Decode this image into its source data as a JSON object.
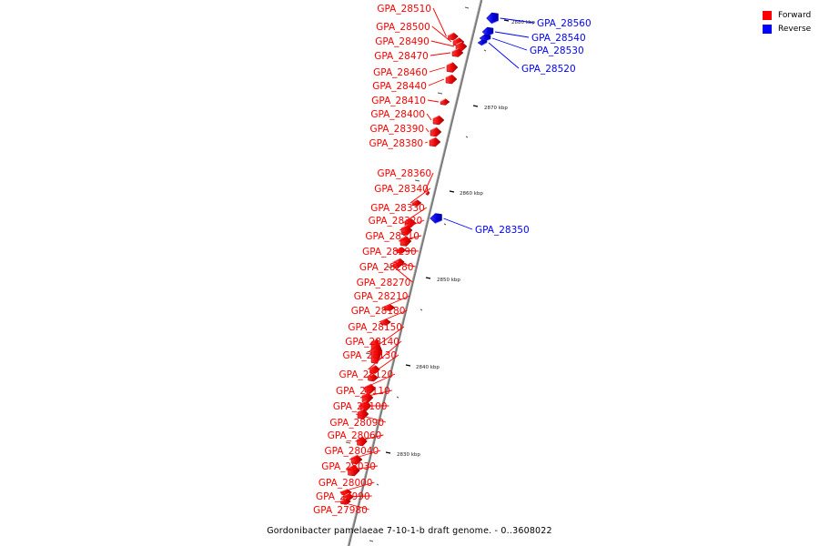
{
  "legend": {
    "forward": {
      "label": "Forward",
      "color": "#ff0000"
    },
    "reverse": {
      "label": "Reverse",
      "color": "#0000ff"
    }
  },
  "caption": "Gordonibacter pamelaeae 7-10-1-b draft genome. - 0..3608022",
  "axis_ticks": [
    "2830 kbp",
    "2840 kbp",
    "2850 kbp",
    "2860 kbp",
    "2870 kbp",
    "2880 kbp"
  ],
  "forward_genes": [
    "GPA_28510",
    "GPA_28500",
    "GPA_28490",
    "GPA_28470",
    "GPA_28460",
    "GPA_28440",
    "GPA_28410",
    "GPA_28400",
    "GPA_28390",
    "GPA_28380",
    "GPA_28360",
    "GPA_28340",
    "GPA_28330",
    "GPA_28320",
    "GPA_28310",
    "GPA_28290",
    "GPA_28280",
    "GPA_28270",
    "GPA_28210",
    "GPA_28180",
    "GPA_28150",
    "GPA_28140",
    "GPA_28130",
    "GPA_28120",
    "GPA_28110",
    "GPA_28100",
    "GPA_28090",
    "GPA_28060",
    "GPA_28040",
    "GPA_28030",
    "GPA_28000",
    "GPA_27990",
    "GPA_27980"
  ],
  "reverse_genes": [
    "GPA_28560",
    "GPA_28540",
    "GPA_28530",
    "GPA_28520",
    "GPA_28350"
  ]
}
